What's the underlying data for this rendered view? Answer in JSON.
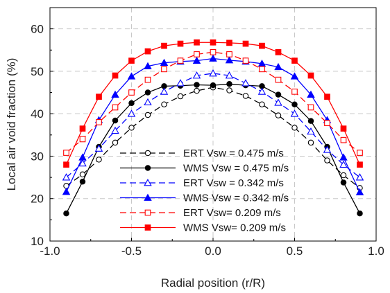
{
  "chart_data": {
    "type": "line",
    "xlabel": "Radial position (r/R)",
    "ylabel": "Local air void fraction (%)",
    "xlim": [
      -1.0,
      1.0
    ],
    "ylim": [
      10,
      65
    ],
    "xticks": [
      -1.0,
      -0.5,
      0.0,
      0.5,
      1.0
    ],
    "xtick_labels": [
      "-1.0",
      "-0.5",
      "0.0",
      "0.5",
      "1.0"
    ],
    "yticks": [
      10,
      20,
      30,
      40,
      50,
      60
    ],
    "ytick_labels": [
      "10",
      "20",
      "30",
      "40",
      "50",
      "60"
    ],
    "grid": true,
    "legend_position": "bottom-center",
    "x": [
      -0.9,
      -0.8,
      -0.7,
      -0.6,
      -0.5,
      -0.4,
      -0.3,
      -0.2,
      -0.1,
      0.0,
      0.1,
      0.2,
      0.3,
      0.4,
      0.5,
      0.6,
      0.7,
      0.8,
      0.9
    ],
    "series": [
      {
        "name": "ERT Vsw = 0.475 m/s",
        "color": "#000000",
        "dashed": true,
        "marker": "circle-open",
        "values": [
          23.0,
          25.7,
          29.2,
          33.2,
          36.7,
          39.7,
          42.2,
          44.1,
          45.4,
          46.2,
          45.5,
          44.2,
          42.2,
          39.6,
          36.7,
          33.2,
          29.0,
          25.5,
          22.5
        ]
      },
      {
        "name": "WMS Vsw = 0.475 m/s",
        "color": "#000000",
        "dashed": false,
        "marker": "circle-filled",
        "values": [
          16.5,
          24.0,
          32.2,
          38.4,
          42.5,
          45.0,
          46.5,
          46.6,
          46.8,
          46.7,
          47.0,
          46.7,
          46.5,
          44.5,
          42.2,
          38.3,
          32.2,
          23.8,
          16.5
        ]
      },
      {
        "name": "ERT Vsw = 0.342 m/s",
        "color": "#0000ff",
        "dashed": true,
        "marker": "triangle-open",
        "values": [
          25.0,
          28.3,
          31.8,
          36.0,
          40.0,
          42.7,
          45.2,
          47.2,
          49.0,
          49.5,
          49.0,
          47.2,
          45.2,
          42.6,
          40.0,
          35.8,
          31.5,
          28.0,
          25.0
        ]
      },
      {
        "name": "WMS Vsw = 0.342 m/s",
        "color": "#0000ff",
        "dashed": false,
        "marker": "triangle-filled",
        "values": [
          21.6,
          29.7,
          38.5,
          44.5,
          48.8,
          51.2,
          52.0,
          52.3,
          52.5,
          53.0,
          52.6,
          52.3,
          51.8,
          51.0,
          48.8,
          44.5,
          38.5,
          29.7,
          21.5
        ]
      },
      {
        "name": "ERT Vsw= 0.209 m/s",
        "color": "#ff0000",
        "dashed": true,
        "marker": "square-open",
        "values": [
          30.8,
          34.0,
          38.0,
          41.5,
          45.0,
          48.0,
          50.5,
          52.5,
          54.0,
          54.5,
          54.0,
          52.5,
          50.5,
          48.0,
          45.2,
          41.5,
          37.8,
          33.8,
          30.8
        ]
      },
      {
        "name": "WMS Vsw= 0.209 m/s",
        "color": "#ff0000",
        "dashed": false,
        "marker": "square-filled",
        "values": [
          28.0,
          36.5,
          44.0,
          49.0,
          52.5,
          54.7,
          56.0,
          56.5,
          56.8,
          56.8,
          56.7,
          56.5,
          56.0,
          54.5,
          52.5,
          49.0,
          44.0,
          36.5,
          28.0
        ]
      }
    ]
  }
}
